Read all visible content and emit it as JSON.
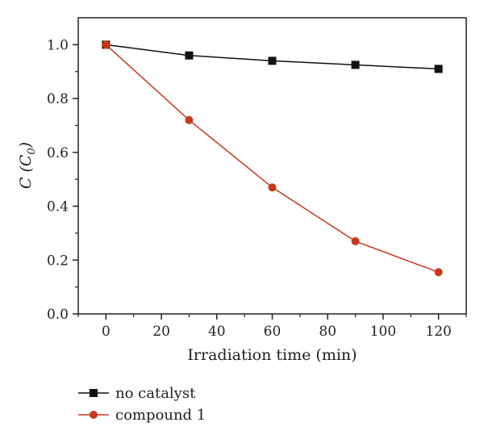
{
  "chart_data": {
    "type": "line",
    "title": "",
    "xlabel": "Irradiation time (min)",
    "ylabel": {
      "main": "C (C",
      "sub": "0",
      "close": ")"
    },
    "xlim": [
      -10,
      130
    ],
    "ylim": [
      0,
      1.1
    ],
    "xticks": [
      0,
      20,
      40,
      60,
      80,
      100,
      120
    ],
    "yticks": [
      0.0,
      0.2,
      0.4,
      0.6,
      0.8,
      1.0
    ],
    "ytick_labels": [
      "0.0",
      "0.2",
      "0.4",
      "0.6",
      "0.8",
      "1.0"
    ],
    "grid": false,
    "legend_position": "bottom-left, below plot",
    "x": [
      0,
      30,
      60,
      90,
      120
    ],
    "series": [
      {
        "name": "no catalyst",
        "marker": "square",
        "color": "#111111",
        "values": [
          1.0,
          0.96,
          0.94,
          0.925,
          0.91
        ]
      },
      {
        "name": "compound 1",
        "marker": "circle",
        "color": "#c8381c",
        "values": [
          1.0,
          0.72,
          0.47,
          0.27,
          0.155
        ]
      }
    ]
  }
}
